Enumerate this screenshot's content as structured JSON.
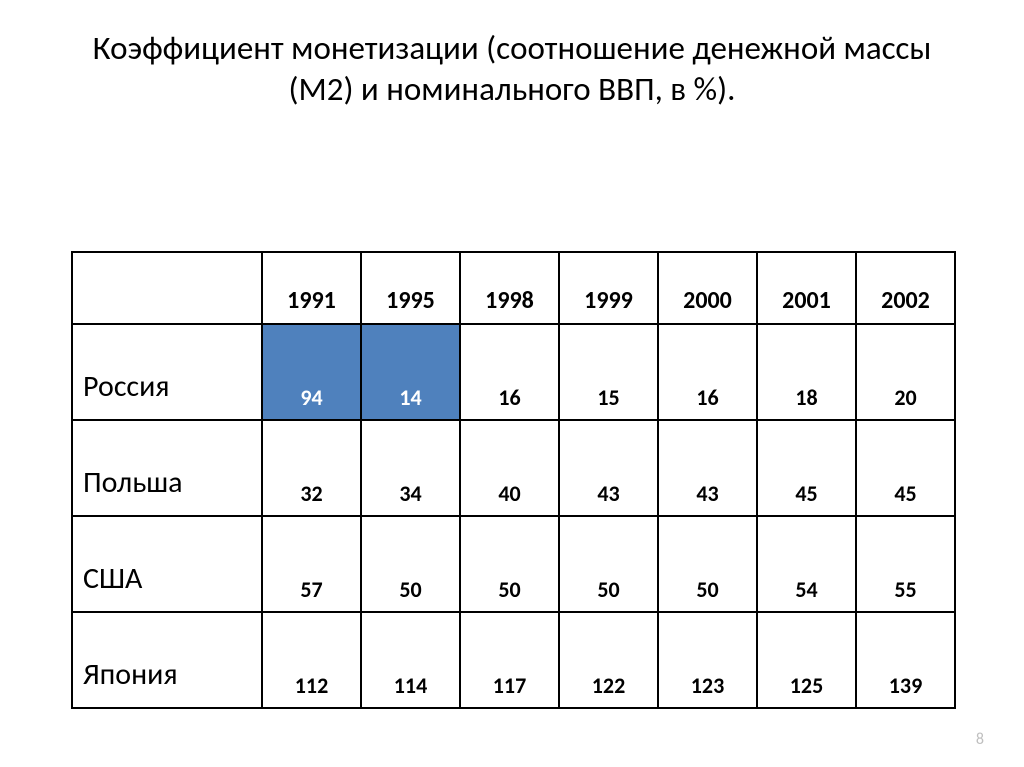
{
  "title": "Коэффициент монетизации (соотношение денежной массы (М2) и номинального ВВП, в %).",
  "page_number": "8",
  "table": {
    "highlight_color": "#4f81bd",
    "highlight_text_color": "#ffffff",
    "years": [
      "1991",
      "1995",
      "1998",
      "1999",
      "2000",
      "2001",
      "2002"
    ],
    "rows": [
      {
        "label": "Россия",
        "cells": [
          {
            "value": "94",
            "highlight": true
          },
          {
            "value": "14",
            "highlight": true
          },
          {
            "value": "16",
            "highlight": false
          },
          {
            "value": "15",
            "highlight": false
          },
          {
            "value": "16",
            "highlight": false
          },
          {
            "value": "18",
            "highlight": false
          },
          {
            "value": "20",
            "highlight": false
          }
        ]
      },
      {
        "label": "Польша",
        "cells": [
          {
            "value": "32",
            "highlight": false
          },
          {
            "value": "34",
            "highlight": false
          },
          {
            "value": "40",
            "highlight": false
          },
          {
            "value": "43",
            "highlight": false
          },
          {
            "value": "43",
            "highlight": false
          },
          {
            "value": "45",
            "highlight": false
          },
          {
            "value": "45",
            "highlight": false
          }
        ]
      },
      {
        "label": "США",
        "cells": [
          {
            "value": "57",
            "highlight": false
          },
          {
            "value": "50",
            "highlight": false
          },
          {
            "value": "50",
            "highlight": false
          },
          {
            "value": "50",
            "highlight": false
          },
          {
            "value": "50",
            "highlight": false
          },
          {
            "value": "54",
            "highlight": false
          },
          {
            "value": "55",
            "highlight": false
          }
        ]
      },
      {
        "label": "Япония",
        "cells": [
          {
            "value": "112",
            "highlight": false
          },
          {
            "value": "114",
            "highlight": false
          },
          {
            "value": "117",
            "highlight": false
          },
          {
            "value": "122",
            "highlight": false
          },
          {
            "value": "123",
            "highlight": false
          },
          {
            "value": "125",
            "highlight": false
          },
          {
            "value": "139",
            "highlight": false
          }
        ]
      }
    ]
  }
}
